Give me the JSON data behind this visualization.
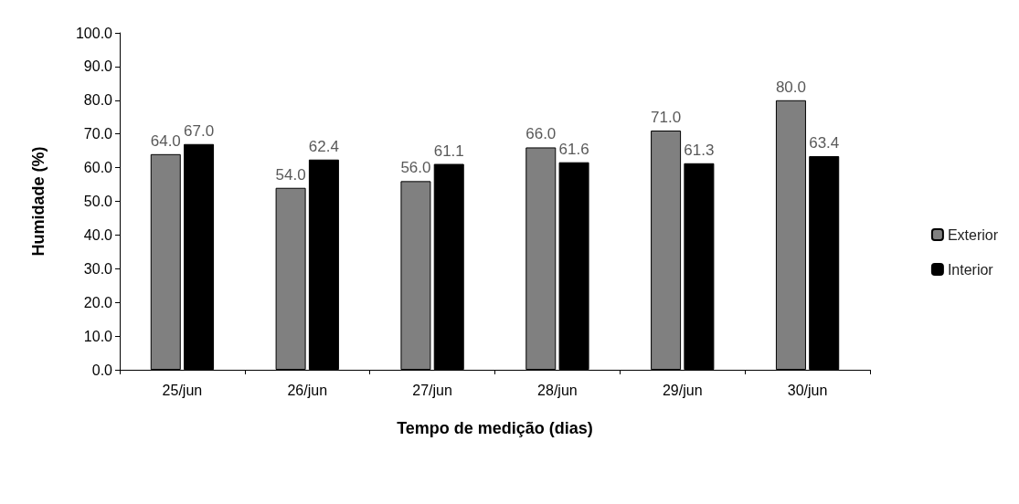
{
  "chart_data": {
    "type": "bar",
    "xlabel": "Tempo de medição (dias)",
    "ylabel": "Humidade (%)",
    "categories": [
      "25/jun",
      "26/jun",
      "27/jun",
      "28/jun",
      "29/jun",
      "30/jun"
    ],
    "series": [
      {
        "name": "Exterior",
        "color": "#808080",
        "values": [
          64.0,
          54.0,
          56.0,
          66.0,
          71.0,
          80.0
        ],
        "value_labels": [
          "64.0",
          "54.0",
          "56.0",
          "66.0",
          "71.0",
          "80.0"
        ]
      },
      {
        "name": "Interior",
        "color": "#000000",
        "values": [
          67.0,
          62.4,
          61.1,
          61.6,
          61.3,
          63.4
        ],
        "value_labels": [
          "67.0",
          "62.4",
          "61.1",
          "61.6",
          "61.3",
          "63.4"
        ]
      }
    ],
    "ylim": [
      0,
      100
    ],
    "yticks": [
      {
        "value": 0,
        "label": "0.0"
      },
      {
        "value": 10,
        "label": "10.0"
      },
      {
        "value": 20,
        "label": "20.0"
      },
      {
        "value": 30,
        "label": "30.0"
      },
      {
        "value": 40,
        "label": "40.0"
      },
      {
        "value": 50,
        "label": "50.0"
      },
      {
        "value": 60,
        "label": "60.0"
      },
      {
        "value": 70,
        "label": "70.0"
      },
      {
        "value": 80,
        "label": "80.0"
      },
      {
        "value": 90,
        "label": "90.0"
      },
      {
        "value": 100,
        "label": "100.0"
      }
    ],
    "grid": false,
    "legend": "right"
  }
}
